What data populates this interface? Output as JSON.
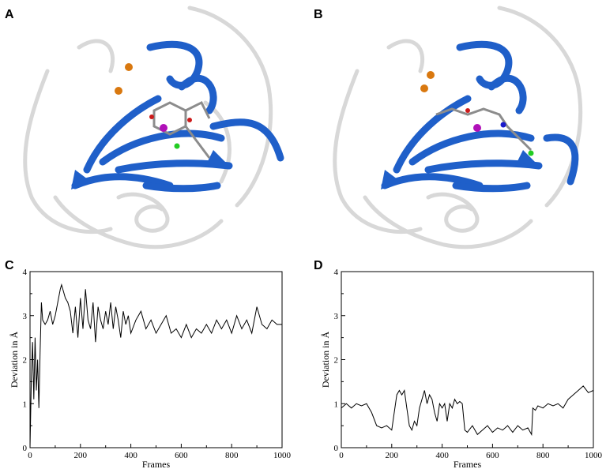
{
  "panels": {
    "a": {
      "letter": "A"
    },
    "b": {
      "letter": "B"
    },
    "c": {
      "letter": "C"
    },
    "d": {
      "letter": "D"
    }
  },
  "colors": {
    "ribbon": "#1f5fc9",
    "ribbon_dark": "#0b3f99",
    "ghost": "#d6d6d6",
    "ion": "#d9780f",
    "ligand": "#8c8c8c",
    "oxygen": "#cc1a1a",
    "nitrogen": "#1a1acc",
    "magnesium": "#b010b8",
    "chlorine": "#22cc22",
    "trace": "#000000"
  },
  "chart_data": [
    {
      "type": "line",
      "panel": "C",
      "xlabel": "Frames",
      "ylabel": "Deviation in Å",
      "xlim": [
        0,
        1000
      ],
      "ylim": [
        0,
        4
      ],
      "xticks": [
        0,
        200,
        400,
        600,
        800,
        1000
      ],
      "yticks": [
        0,
        1,
        2,
        3,
        4
      ],
      "grid": false,
      "series": [
        {
          "x": [
            0,
            5,
            10,
            15,
            20,
            25,
            30,
            35,
            40,
            45,
            50,
            60,
            70,
            80,
            90,
            100,
            110,
            120,
            125,
            130,
            140,
            150,
            160,
            170,
            180,
            190,
            200,
            210,
            220,
            230,
            240,
            250,
            260,
            270,
            280,
            290,
            300,
            310,
            320,
            330,
            340,
            350,
            360,
            370,
            380,
            390,
            400,
            420,
            440,
            460,
            480,
            500,
            520,
            540,
            560,
            580,
            600,
            620,
            640,
            660,
            680,
            700,
            720,
            740,
            760,
            780,
            800,
            820,
            840,
            860,
            880,
            900,
            920,
            940,
            960,
            980,
            1000
          ],
          "y": [
            0.0,
            1.5,
            2.4,
            1.1,
            2.5,
            1.3,
            2.0,
            0.9,
            2.2,
            3.3,
            2.9,
            2.8,
            2.9,
            3.1,
            2.8,
            3.0,
            3.3,
            3.6,
            3.7,
            3.6,
            3.4,
            3.3,
            3.1,
            2.6,
            3.2,
            2.5,
            3.4,
            2.7,
            3.6,
            2.9,
            2.7,
            3.3,
            2.4,
            3.2,
            2.9,
            2.7,
            3.1,
            2.8,
            3.3,
            2.7,
            3.2,
            2.9,
            2.5,
            3.1,
            2.8,
            3.0,
            2.6,
            2.9,
            3.1,
            2.7,
            2.9,
            2.6,
            2.8,
            3.0,
            2.6,
            2.7,
            2.5,
            2.8,
            2.5,
            2.7,
            2.6,
            2.8,
            2.6,
            2.9,
            2.7,
            2.9,
            2.6,
            3.0,
            2.7,
            2.9,
            2.6,
            3.2,
            2.8,
            2.7,
            2.9,
            2.8,
            2.8
          ]
        }
      ]
    },
    {
      "type": "line",
      "panel": "D",
      "xlabel": "Frames",
      "ylabel": "Deviation in Å",
      "xlim": [
        0,
        1000
      ],
      "ylim": [
        0,
        4
      ],
      "xticks": [
        0,
        200,
        400,
        600,
        800,
        1000
      ],
      "yticks": [
        0,
        1,
        2,
        3,
        4
      ],
      "grid": false,
      "series": [
        {
          "x": [
            0,
            20,
            40,
            60,
            80,
            100,
            120,
            140,
            160,
            180,
            200,
            220,
            230,
            240,
            250,
            260,
            270,
            280,
            290,
            300,
            310,
            320,
            330,
            340,
            350,
            360,
            370,
            380,
            390,
            400,
            410,
            420,
            430,
            440,
            450,
            460,
            470,
            480,
            490,
            500,
            520,
            540,
            560,
            580,
            600,
            620,
            640,
            660,
            680,
            700,
            720,
            740,
            755,
            760,
            770,
            780,
            800,
            820,
            840,
            860,
            880,
            900,
            920,
            940,
            960,
            980,
            1000
          ],
          "y": [
            0.9,
            1.0,
            0.9,
            1.0,
            0.95,
            1.0,
            0.8,
            0.5,
            0.45,
            0.5,
            0.4,
            1.2,
            1.3,
            1.2,
            1.3,
            0.9,
            0.5,
            0.4,
            0.6,
            0.5,
            0.9,
            1.1,
            1.3,
            1.0,
            1.2,
            1.1,
            0.8,
            0.6,
            1.0,
            0.9,
            1.0,
            0.6,
            1.0,
            0.9,
            1.1,
            1.0,
            1.05,
            1.0,
            0.4,
            0.35,
            0.5,
            0.3,
            0.4,
            0.5,
            0.35,
            0.45,
            0.4,
            0.5,
            0.35,
            0.5,
            0.4,
            0.45,
            0.3,
            0.9,
            0.85,
            0.95,
            0.9,
            1.0,
            0.95,
            1.0,
            0.9,
            1.1,
            1.2,
            1.3,
            1.4,
            1.25,
            1.3
          ]
        }
      ]
    }
  ]
}
